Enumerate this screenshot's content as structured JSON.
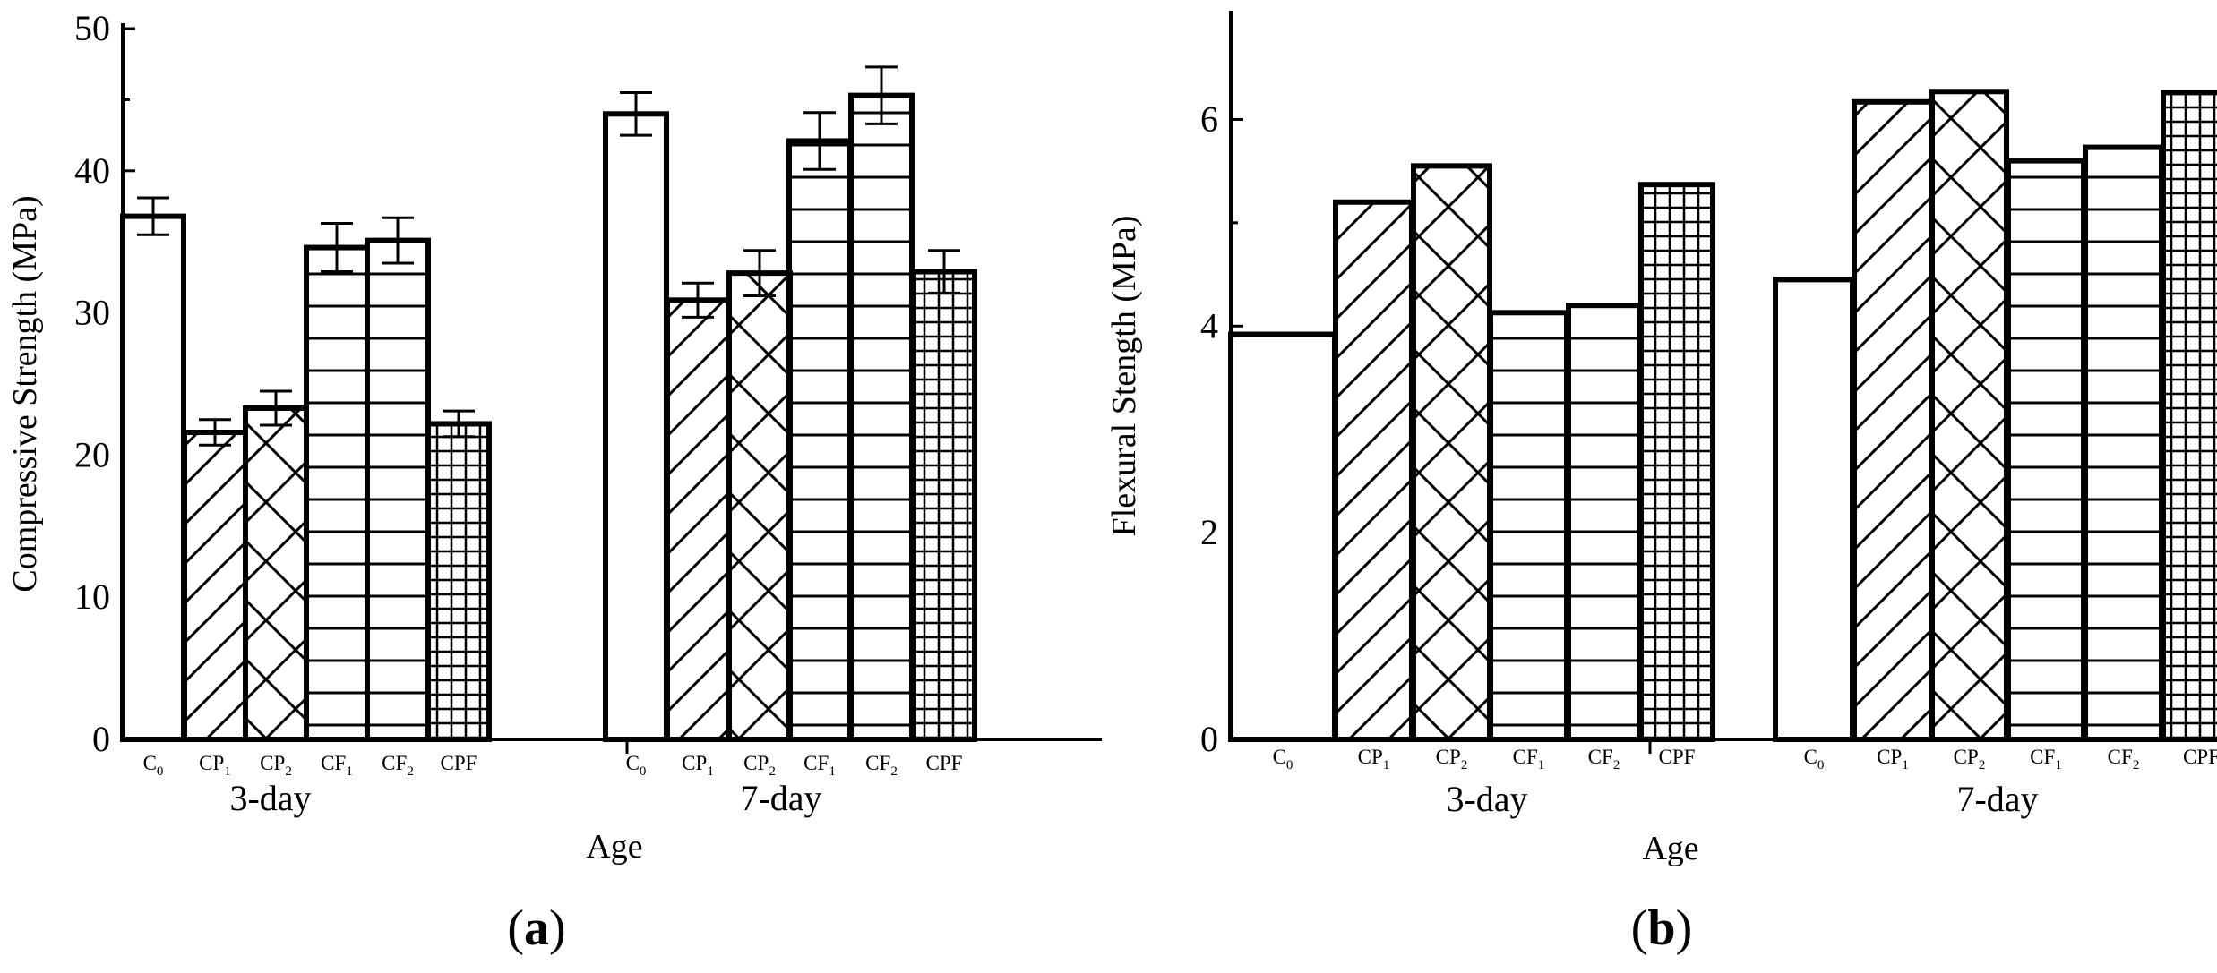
{
  "chart_data": [
    {
      "type": "bar",
      "panel": "(a)",
      "panel_letter": "a",
      "ylabel": "Compressive Strength (MPa)",
      "xlabel": "Age",
      "ylim": [
        0,
        50
      ],
      "yticks": [
        0,
        10,
        20,
        30,
        40,
        50
      ],
      "groups": [
        {
          "label": "3-day",
          "bars": [
            {
              "name": "C",
              "sub": "0",
              "pattern": "none",
              "value": 36.8,
              "error": 1.3
            },
            {
              "name": "CP",
              "sub": "1",
              "pattern": "diag",
              "value": 21.6,
              "error": 0.9
            },
            {
              "name": "CP",
              "sub": "2",
              "pattern": "cross",
              "value": 23.3,
              "error": 1.2
            },
            {
              "name": "CF",
              "sub": "1",
              "pattern": "horiz",
              "value": 34.6,
              "error": 1.7
            },
            {
              "name": "CF",
              "sub": "2",
              "pattern": "horiz",
              "value": 35.1,
              "error": 1.6
            },
            {
              "name": "CPF",
              "sub": "",
              "pattern": "grid",
              "value": 22.2,
              "error": 0.9
            }
          ]
        },
        {
          "label": "7-day",
          "bars": [
            {
              "name": "C",
              "sub": "0",
              "pattern": "none",
              "value": 44.0,
              "error": 1.5
            },
            {
              "name": "CP",
              "sub": "1",
              "pattern": "diag",
              "value": 30.9,
              "error": 1.2
            },
            {
              "name": "CP",
              "sub": "2",
              "pattern": "cross",
              "value": 32.8,
              "error": 1.6
            },
            {
              "name": "CF",
              "sub": "1",
              "pattern": "horiz",
              "value": 42.1,
              "error": 2.0
            },
            {
              "name": "CF",
              "sub": "2",
              "pattern": "horiz",
              "value": 45.3,
              "error": 2.0
            },
            {
              "name": "CPF",
              "sub": "",
              "pattern": "grid",
              "value": 32.9,
              "error": 1.5
            }
          ]
        }
      ]
    },
    {
      "type": "bar",
      "panel": "(b)",
      "panel_letter": "b",
      "ylabel": "Flexural Stength (MPa)",
      "xlabel": "Age",
      "ylim": [
        0,
        7
      ],
      "yticks": [
        0,
        2,
        4,
        6
      ],
      "groups": [
        {
          "label": "3-day",
          "bars": [
            {
              "name": "C",
              "sub": "0",
              "pattern": "none",
              "value": 3.92
            },
            {
              "name": "CP",
              "sub": "1",
              "pattern": "diag",
              "value": 5.2
            },
            {
              "name": "CP",
              "sub": "2",
              "pattern": "cross",
              "value": 5.55
            },
            {
              "name": "CF",
              "sub": "1",
              "pattern": "horiz",
              "value": 4.13
            },
            {
              "name": "CF",
              "sub": "2",
              "pattern": "horiz",
              "value": 4.2
            },
            {
              "name": "CPF",
              "sub": "",
              "pattern": "grid",
              "value": 5.37
            }
          ]
        },
        {
          "label": "7-day",
          "bars": [
            {
              "name": "C",
              "sub": "0",
              "pattern": "none",
              "value": 4.45
            },
            {
              "name": "CP",
              "sub": "1",
              "pattern": "diag",
              "value": 6.17
            },
            {
              "name": "CP",
              "sub": "2",
              "pattern": "cross",
              "value": 6.27
            },
            {
              "name": "CF",
              "sub": "1",
              "pattern": "horiz",
              "value": 5.6
            },
            {
              "name": "CF",
              "sub": "2",
              "pattern": "horiz",
              "value": 5.73
            },
            {
              "name": "CPF",
              "sub": "",
              "pattern": "grid",
              "value": 6.26
            }
          ]
        }
      ]
    }
  ]
}
